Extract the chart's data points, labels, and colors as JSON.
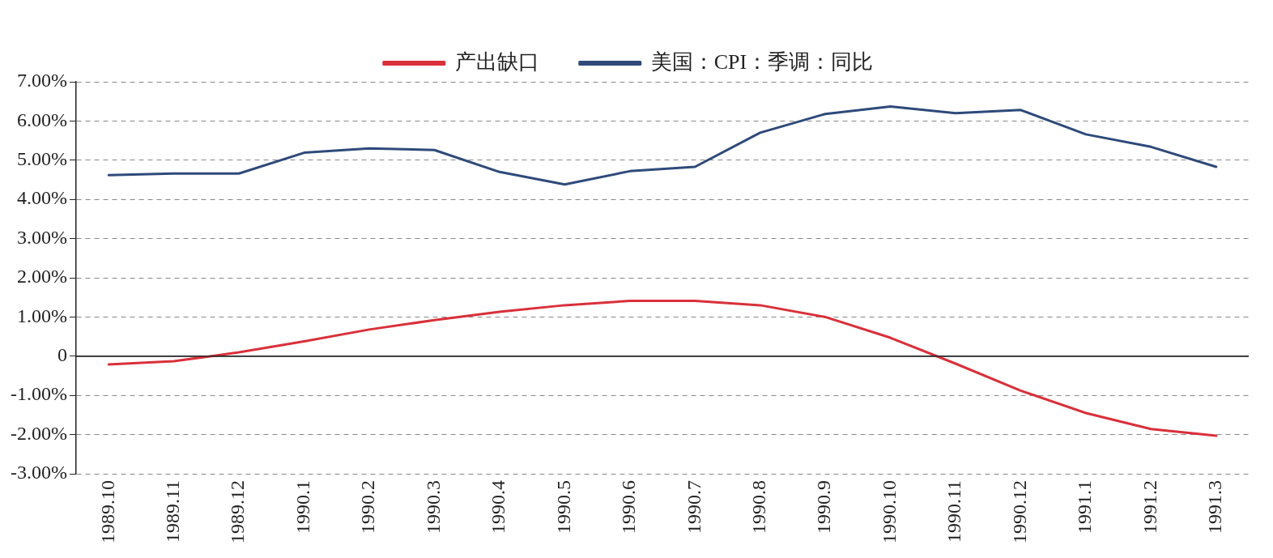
{
  "chart_data": {
    "type": "line",
    "categories": [
      "1989.10",
      "1989.11",
      "1989.12",
      "1990.1",
      "1990.2",
      "1990.3",
      "1990.4",
      "1990.5",
      "1990.6",
      "1990.7",
      "1990.8",
      "1990.9",
      "1990.10",
      "1990.11",
      "1990.12",
      "1991.1",
      "1991.2",
      "1991.3"
    ],
    "series": [
      {
        "name": "产出缺口",
        "color": "#d9303a",
        "values": [
          -0.21,
          -0.13,
          0.1,
          0.38,
          0.68,
          0.92,
          1.13,
          1.3,
          1.41,
          1.41,
          1.3,
          1.0,
          0.47,
          -0.19,
          -0.88,
          -1.45,
          -1.86,
          -2.03
        ]
      },
      {
        "name": "美国：CPI：季调：同比",
        "color": "#2f4a7a",
        "values": [
          4.62,
          4.66,
          4.66,
          5.19,
          5.3,
          5.26,
          4.7,
          4.38,
          4.72,
          4.83,
          5.7,
          6.18,
          6.37,
          6.2,
          6.28,
          5.66,
          5.34,
          4.83
        ]
      }
    ],
    "ylim": [
      -3,
      7
    ],
    "yticks": [
      {
        "value": -3,
        "label": "-3.00%"
      },
      {
        "value": -2,
        "label": "-2.00%"
      },
      {
        "value": -1,
        "label": "-1.00%"
      },
      {
        "value": 0,
        "label": "0"
      },
      {
        "value": 1,
        "label": "1.00%"
      },
      {
        "value": 2,
        "label": "2.00%"
      },
      {
        "value": 3,
        "label": "3.00%"
      },
      {
        "value": 4,
        "label": "4.00%"
      },
      {
        "value": 5,
        "label": "5.00%"
      },
      {
        "value": 6,
        "label": "6.00%"
      },
      {
        "value": 7,
        "label": "7.00%"
      }
    ],
    "grid": "y",
    "legend": "top",
    "marker": "none",
    "line_style": "solid"
  }
}
